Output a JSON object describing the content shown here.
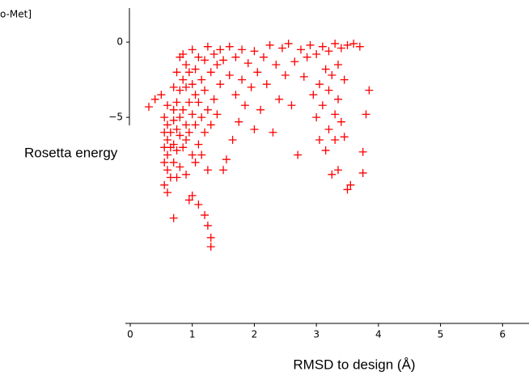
{
  "chart_data": {
    "type": "scatter",
    "title": "o-Met]",
    "xlabel": "RMSD to design (Å)",
    "ylabel": "Rosetta energy",
    "color": "#ff0000",
    "marker": "+",
    "xlim": [
      0,
      6.4
    ],
    "ylim": [
      -18.7,
      2.8
    ],
    "xticks": [
      0,
      1,
      2,
      3,
      4,
      5,
      6
    ],
    "yticks": [
      0,
      {
        "value": -5,
        "label": "−5"
      }
    ],
    "series": [
      {
        "name": null,
        "color": "#ff0000",
        "x": [
          0.3,
          0.4,
          0.5,
          0.55,
          0.55,
          0.55,
          0.55,
          0.55,
          0.6,
          0.6,
          0.6,
          0.6,
          0.6,
          0.6,
          0.65,
          0.65,
          0.65,
          0.7,
          0.7,
          0.7,
          0.7,
          0.7,
          0.7,
          0.75,
          0.75,
          0.75,
          0.75,
          0.75,
          0.8,
          0.8,
          0.8,
          0.8,
          0.8,
          0.85,
          0.85,
          0.85,
          0.85,
          0.9,
          0.9,
          0.9,
          0.9,
          0.9,
          0.95,
          0.95,
          0.95,
          0.95,
          1.0,
          1.0,
          1.0,
          1.0,
          1.0,
          1.05,
          1.05,
          1.05,
          1.05,
          1.1,
          1.1,
          1.1,
          1.1,
          1.15,
          1.15,
          1.15,
          1.2,
          1.2,
          1.2,
          1.2,
          1.25,
          1.25,
          1.25,
          1.25,
          1.3,
          1.3,
          1.3,
          1.35,
          1.35,
          1.3,
          1.4,
          1.4,
          1.45,
          1.45,
          1.5,
          1.55,
          1.5,
          1.6,
          1.6,
          1.65,
          1.7,
          1.7,
          1.75,
          1.8,
          1.8,
          1.85,
          1.9,
          1.95,
          2.0,
          2.0,
          2.05,
          2.1,
          2.15,
          2.2,
          2.25,
          2.3,
          2.35,
          2.4,
          2.45,
          2.5,
          2.55,
          2.6,
          2.65,
          2.7,
          2.75,
          2.8,
          2.85,
          2.9,
          2.95,
          3.0,
          3.0,
          3.05,
          3.05,
          3.1,
          3.1,
          3.15,
          3.15,
          3.2,
          3.2,
          3.2,
          3.25,
          3.25,
          3.3,
          3.3,
          3.3,
          3.35,
          3.35,
          3.35,
          3.4,
          3.4,
          3.45,
          3.45,
          3.5,
          3.5,
          3.55,
          3.6,
          3.7,
          3.75,
          3.75,
          3.8,
          3.85
        ],
        "values": [
          -4.3,
          -3.8,
          -3.5,
          -5,
          -6,
          -7,
          -8,
          -9.5,
          -4.2,
          -5.5,
          -6.5,
          -7.5,
          -8.5,
          -10,
          -6,
          -7,
          -9,
          -3,
          -4.5,
          -5.2,
          -6.8,
          -8,
          -11.7,
          -2,
          -4,
          -5.8,
          -7.2,
          -9,
          -1,
          -3.2,
          -5,
          -6.2,
          -8.3,
          -0.8,
          -2.5,
          -4.5,
          -7,
          -1.5,
          -3,
          -5.5,
          -6.5,
          -8.8,
          -2,
          -4,
          -6,
          -10.5,
          -0.5,
          -2.8,
          -4.8,
          -7.5,
          -10.2,
          -1.8,
          -3.5,
          -5.5,
          -8,
          -1,
          -4,
          -6.8,
          -10.8,
          -2.5,
          -5,
          -7.5,
          -1.2,
          -3.2,
          -6,
          -11.5,
          -0.3,
          -4.5,
          -8.5,
          -12.2,
          -2,
          -5.5,
          -13,
          -0.8,
          -3.8,
          -13.6,
          -1.5,
          -4.8,
          -0.5,
          -2.8,
          -8.5,
          -7.8,
          -1.2,
          -0.3,
          -2.2,
          -6.5,
          -1,
          -3.5,
          -5.3,
          -0.5,
          -2.5,
          -4.2,
          -1.4,
          -3,
          -0.6,
          -5.8,
          -2,
          -4.5,
          -1,
          -2.8,
          -0.2,
          -6,
          -1.5,
          -3.8,
          -0.4,
          -2.2,
          -0.1,
          -4.2,
          -1.3,
          -7.5,
          -0.5,
          -2.3,
          -1,
          -0.2,
          -3.5,
          -0.8,
          -5,
          -2.8,
          -6.5,
          -0.3,
          -4.2,
          -1.8,
          -7.2,
          -0.6,
          -3.2,
          -5.8,
          -2.2,
          -8.8,
          -0.1,
          -4.8,
          -6.5,
          -1.5,
          -3.8,
          -8.5,
          -0.4,
          -5.3,
          -2.5,
          -6.3,
          -0.2,
          -9.8,
          -9.5,
          -0.1,
          -0.3,
          -8.7,
          -7.3,
          -4.8,
          -3.2
        ]
      }
    ]
  }
}
